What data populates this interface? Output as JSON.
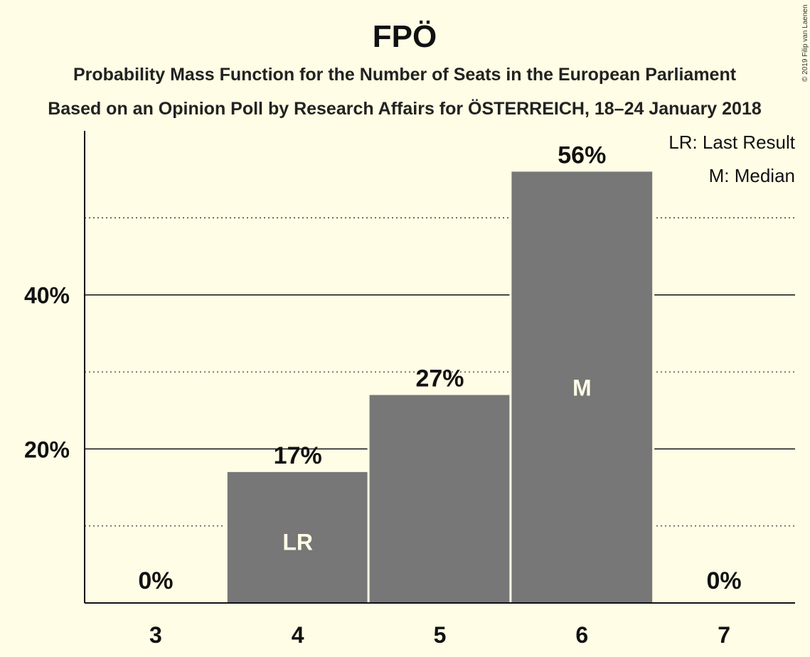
{
  "chart_data": {
    "type": "bar",
    "title": "FPÖ",
    "subtitle_lines": [
      "Probability Mass Function for the Number of Seats in the European Parliament",
      "Based on an Opinion Poll by Research Affairs for ÖSTERREICH, 18–24 January 2018"
    ],
    "categories": [
      "3",
      "4",
      "5",
      "6",
      "7"
    ],
    "values": [
      0,
      17,
      27,
      56,
      0
    ],
    "value_labels": [
      "0%",
      "17%",
      "27%",
      "56%",
      "0%"
    ],
    "inner_labels": [
      "",
      "LR",
      "",
      "M",
      ""
    ],
    "y_ticks": [
      {
        "value": 20,
        "label": "20%"
      },
      {
        "value": 40,
        "label": "40%"
      }
    ],
    "ylim": [
      0,
      61.3
    ],
    "major_gridlines": [
      20,
      40
    ],
    "minor_gridlines": [
      10,
      30,
      50
    ],
    "bar_color": "#777777",
    "legend": [
      "LR: Last Result",
      "M: Median"
    ],
    "legend_position": "top-right",
    "copyright": "© 2019 Filip van Laenen"
  }
}
